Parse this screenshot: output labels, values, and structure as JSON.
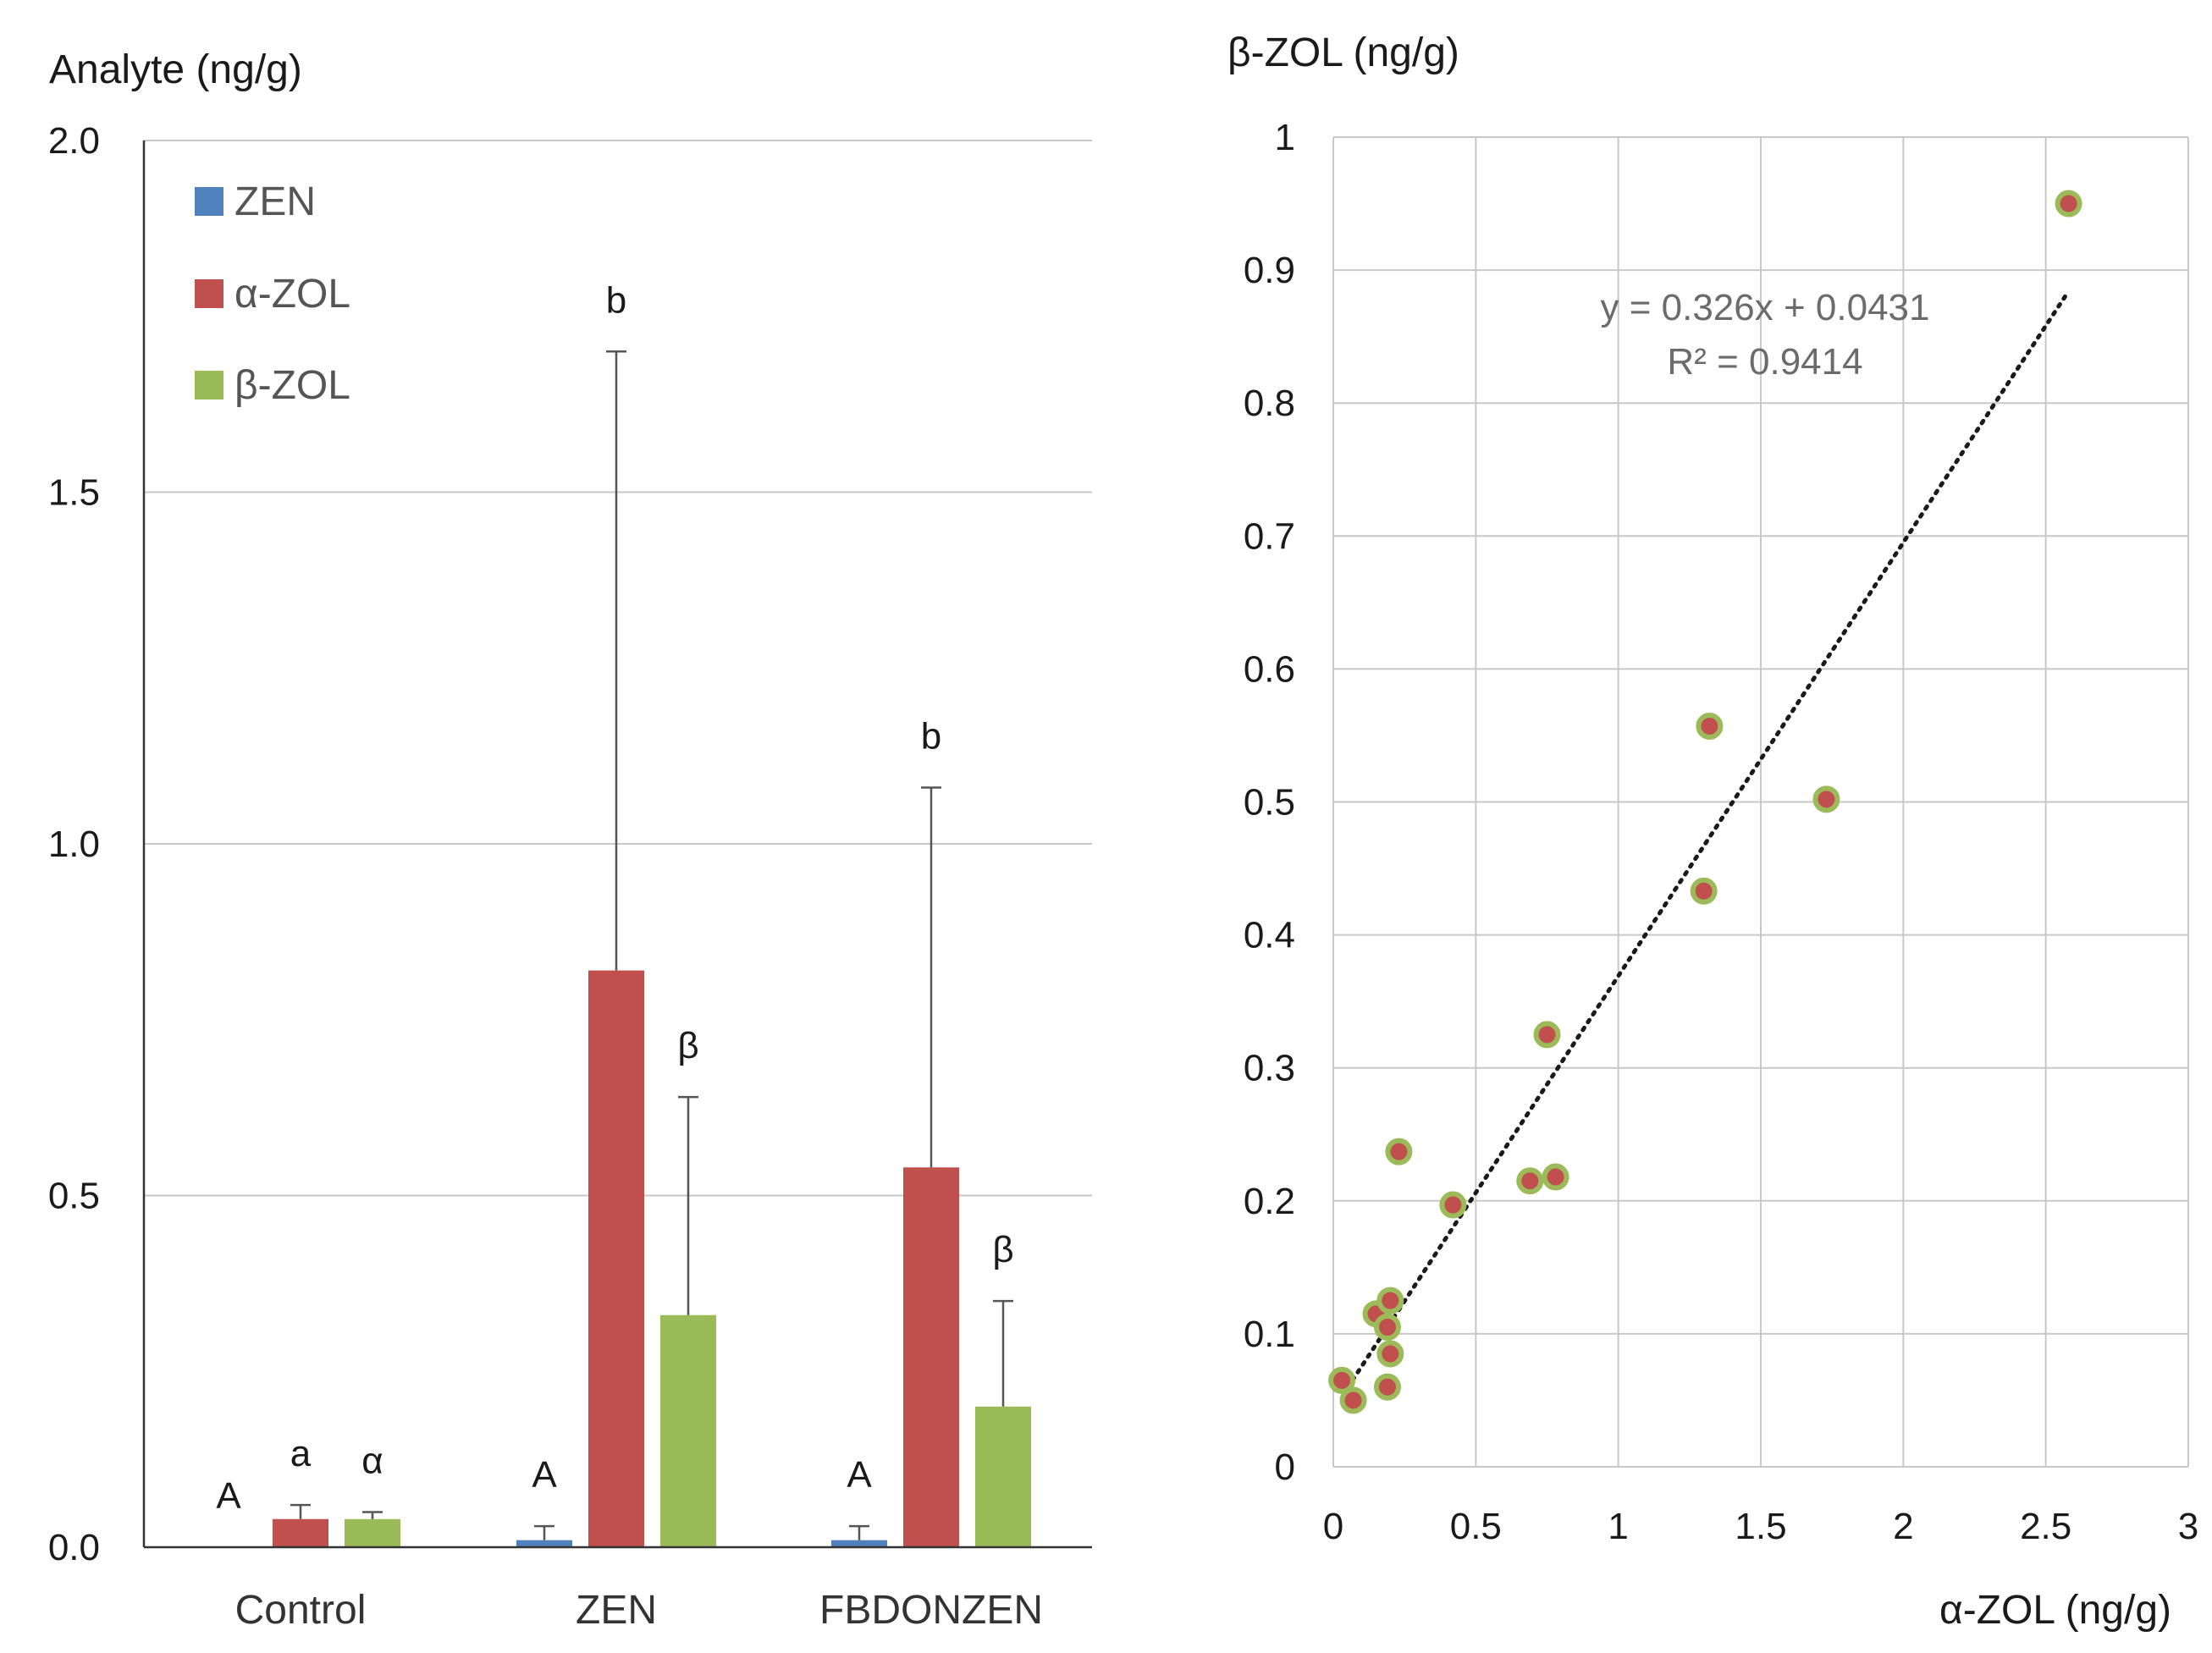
{
  "chart_data": [
    {
      "type": "bar",
      "ylabel": "Analyte (ng/g)",
      "ylim": [
        0,
        2.0
      ],
      "yticks": [
        "0.0",
        "0.5",
        "1.0",
        "1.5",
        "2.0"
      ],
      "yticks_values": [
        0,
        0.5,
        1.0,
        1.5,
        2.0
      ],
      "categories": [
        "Control",
        "ZEN",
        "FBDONZEN"
      ],
      "legend_position": "top-left",
      "series": [
        {
          "name": "ZEN",
          "color": "#4f81bd",
          "values": [
            0.0,
            0.01,
            0.01
          ],
          "errors": [
            0.0,
            0.02,
            0.02
          ],
          "letters": [
            "A",
            "A",
            "A"
          ]
        },
        {
          "name": "α-ZOL",
          "color": "#c0504d",
          "values": [
            0.04,
            0.82,
            0.54
          ],
          "errors": [
            0.02,
            0.88,
            0.54
          ],
          "letters": [
            "a",
            "b",
            "b"
          ]
        },
        {
          "name": "β-ZOL",
          "color": "#9bbb59",
          "values": [
            0.04,
            0.33,
            0.2
          ],
          "errors": [
            0.01,
            0.31,
            0.15
          ],
          "letters": [
            "α",
            "β",
            "β"
          ]
        }
      ]
    },
    {
      "type": "scatter",
      "xlabel": "α-ZOL (ng/g)",
      "ylabel": "β-ZOL (ng/g)",
      "xlim": [
        0,
        3
      ],
      "ylim": [
        0,
        1
      ],
      "xticks": [
        "0",
        "0.5",
        "1",
        "1.5",
        "2",
        "2.5",
        "3"
      ],
      "xticks_values": [
        0,
        0.5,
        1,
        1.5,
        2,
        2.5,
        3
      ],
      "yticks": [
        "0",
        "0.1",
        "0.2",
        "0.3",
        "0.4",
        "0.5",
        "0.6",
        "0.7",
        "0.8",
        "0.9",
        "1"
      ],
      "yticks_values": [
        0,
        0.1,
        0.2,
        0.3,
        0.4,
        0.5,
        0.6,
        0.7,
        0.8,
        0.9,
        1
      ],
      "marker_fill": "#c0504d",
      "marker_edge": "#9bbb59",
      "points": [
        [
          0.03,
          0.065
        ],
        [
          0.07,
          0.05
        ],
        [
          0.15,
          0.115
        ],
        [
          0.19,
          0.105
        ],
        [
          0.2,
          0.125
        ],
        [
          0.2,
          0.085
        ],
        [
          0.19,
          0.06
        ],
        [
          0.23,
          0.237
        ],
        [
          0.42,
          0.197
        ],
        [
          0.69,
          0.215
        ],
        [
          0.78,
          0.218
        ],
        [
          0.75,
          0.325
        ],
        [
          1.3,
          0.433
        ],
        [
          1.32,
          0.557
        ],
        [
          1.73,
          0.502
        ],
        [
          2.58,
          0.95
        ]
      ],
      "trendline": {
        "slope": 0.326,
        "intercept": 0.0431,
        "x_range": [
          0.05,
          2.58
        ]
      },
      "equation": "y = 0.326x + 0.0431",
      "r_squared_label": "R² = 0.9414"
    }
  ]
}
